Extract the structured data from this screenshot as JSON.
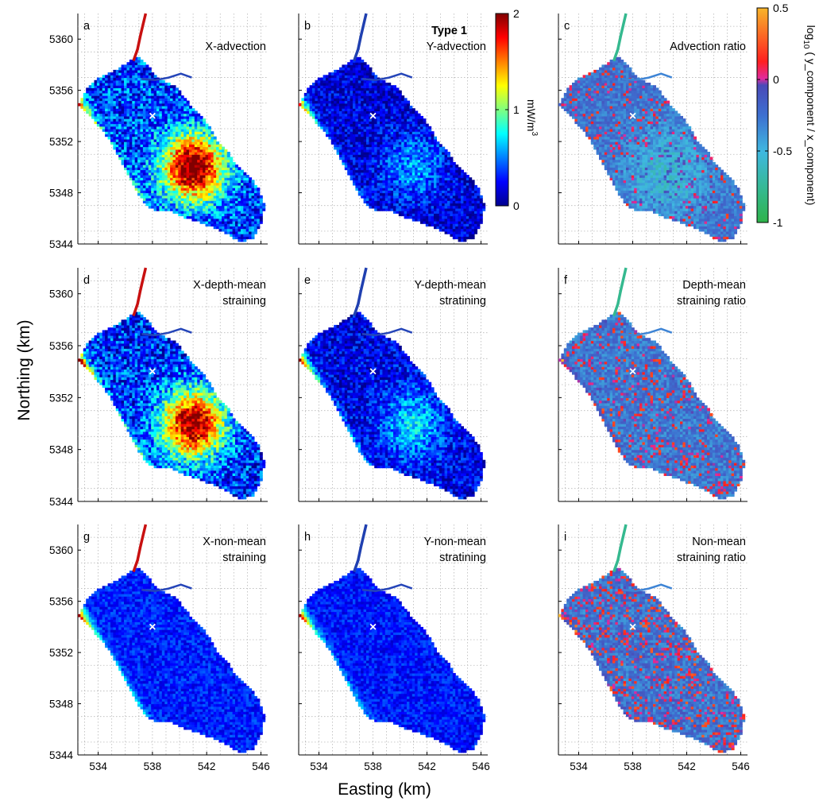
{
  "figure": {
    "xlabel": "Easting (km)",
    "ylabel": "Northing (km)",
    "type_label": "Type 1"
  },
  "colorbars": {
    "magnitude": {
      "label": "mW/m",
      "label_sup": "3",
      "ticks": [
        "0",
        "1",
        "2"
      ],
      "min": 0,
      "max": 2,
      "colormap": "jet"
    },
    "ratio": {
      "label_parts": [
        "log",
        "10",
        " ( y_component / x_component)"
      ],
      "ticks": [
        "-1",
        "-0.5",
        "0",
        "0.5"
      ],
      "min": -1,
      "max": 0.5,
      "colormap": "green-cyan-blue-magenta-red-orange"
    }
  },
  "chart_data": [
    {
      "type": "heatmap",
      "letter": "a",
      "title": [
        "X-advection"
      ],
      "xlim": [
        532.5,
        546.5
      ],
      "ylim": [
        5344,
        5362
      ],
      "xticks": [
        "534",
        "538",
        "542",
        "546"
      ],
      "yticks": [
        "5344",
        "5348",
        "5352",
        "5356",
        "5360"
      ],
      "colorbar": "magnitude",
      "marker": {
        "x": 538,
        "y": 5354,
        "symbol": "×"
      }
    },
    {
      "type": "heatmap",
      "letter": "b",
      "title": [
        "Y-advection"
      ],
      "xlim": [
        532.5,
        546.5
      ],
      "ylim": [
        5344,
        5362
      ],
      "xticks": [
        "534",
        "538",
        "542",
        "546"
      ],
      "yticks": [
        "5344",
        "5348",
        "5352",
        "5356",
        "5360"
      ],
      "colorbar": "magnitude",
      "marker": {
        "x": 538,
        "y": 5354,
        "symbol": "×"
      }
    },
    {
      "type": "heatmap",
      "letter": "c",
      "title": [
        "Advection ratio"
      ],
      "xlim": [
        532.5,
        546.5
      ],
      "ylim": [
        5344,
        5362
      ],
      "xticks": [
        "534",
        "538",
        "542",
        "546"
      ],
      "yticks": [
        "5344",
        "5348",
        "5352",
        "5356",
        "5360"
      ],
      "colorbar": "ratio",
      "marker": {
        "x": 538,
        "y": 5354,
        "symbol": "×"
      }
    },
    {
      "type": "heatmap",
      "letter": "d",
      "title": [
        "X-depth-mean",
        "straining"
      ],
      "xlim": [
        532.5,
        546.5
      ],
      "ylim": [
        5344,
        5362
      ],
      "xticks": [
        "534",
        "538",
        "542",
        "546"
      ],
      "yticks": [
        "5344",
        "5348",
        "5352",
        "5356",
        "5360"
      ],
      "colorbar": "magnitude",
      "marker": {
        "x": 538,
        "y": 5354,
        "symbol": "×"
      }
    },
    {
      "type": "heatmap",
      "letter": "e",
      "title": [
        "Y-depth-mean",
        "stratining"
      ],
      "xlim": [
        532.5,
        546.5
      ],
      "ylim": [
        5344,
        5362
      ],
      "xticks": [
        "534",
        "538",
        "542",
        "546"
      ],
      "yticks": [
        "5344",
        "5348",
        "5352",
        "5356",
        "5360"
      ],
      "colorbar": "magnitude",
      "marker": {
        "x": 538,
        "y": 5354,
        "symbol": "×"
      }
    },
    {
      "type": "heatmap",
      "letter": "f",
      "title": [
        "Depth-mean",
        "straining ratio"
      ],
      "xlim": [
        532.5,
        546.5
      ],
      "ylim": [
        5344,
        5362
      ],
      "xticks": [
        "534",
        "538",
        "542",
        "546"
      ],
      "yticks": [
        "5344",
        "5348",
        "5352",
        "5356",
        "5360"
      ],
      "colorbar": "ratio",
      "marker": {
        "x": 538,
        "y": 5354,
        "symbol": "×"
      }
    },
    {
      "type": "heatmap",
      "letter": "g",
      "title": [
        "X-non-mean",
        "straining"
      ],
      "xlim": [
        532.5,
        546.5
      ],
      "ylim": [
        5344,
        5362
      ],
      "xticks": [
        "534",
        "538",
        "542",
        "546"
      ],
      "yticks": [
        "5344",
        "5348",
        "5352",
        "5356",
        "5360"
      ],
      "colorbar": "magnitude",
      "marker": {
        "x": 538,
        "y": 5354,
        "symbol": "×"
      }
    },
    {
      "type": "heatmap",
      "letter": "h",
      "title": [
        "Y-non-mean",
        "stratining"
      ],
      "xlim": [
        532.5,
        546.5
      ],
      "ylim": [
        5344,
        5362
      ],
      "xticks": [
        "534",
        "538",
        "542",
        "546"
      ],
      "yticks": [
        "5344",
        "5348",
        "5352",
        "5356",
        "5360"
      ],
      "colorbar": "magnitude",
      "marker": {
        "x": 538,
        "y": 5354,
        "symbol": "×"
      }
    },
    {
      "type": "heatmap",
      "letter": "i",
      "title": [
        "Non-mean",
        "straining ratio"
      ],
      "xlim": [
        532.5,
        546.5
      ],
      "ylim": [
        5344,
        5362
      ],
      "xticks": [
        "534",
        "538",
        "542",
        "546"
      ],
      "yticks": [
        "5344",
        "5348",
        "5352",
        "5356",
        "5360"
      ],
      "colorbar": "ratio",
      "marker": {
        "x": 538,
        "y": 5354,
        "symbol": "×"
      }
    }
  ]
}
